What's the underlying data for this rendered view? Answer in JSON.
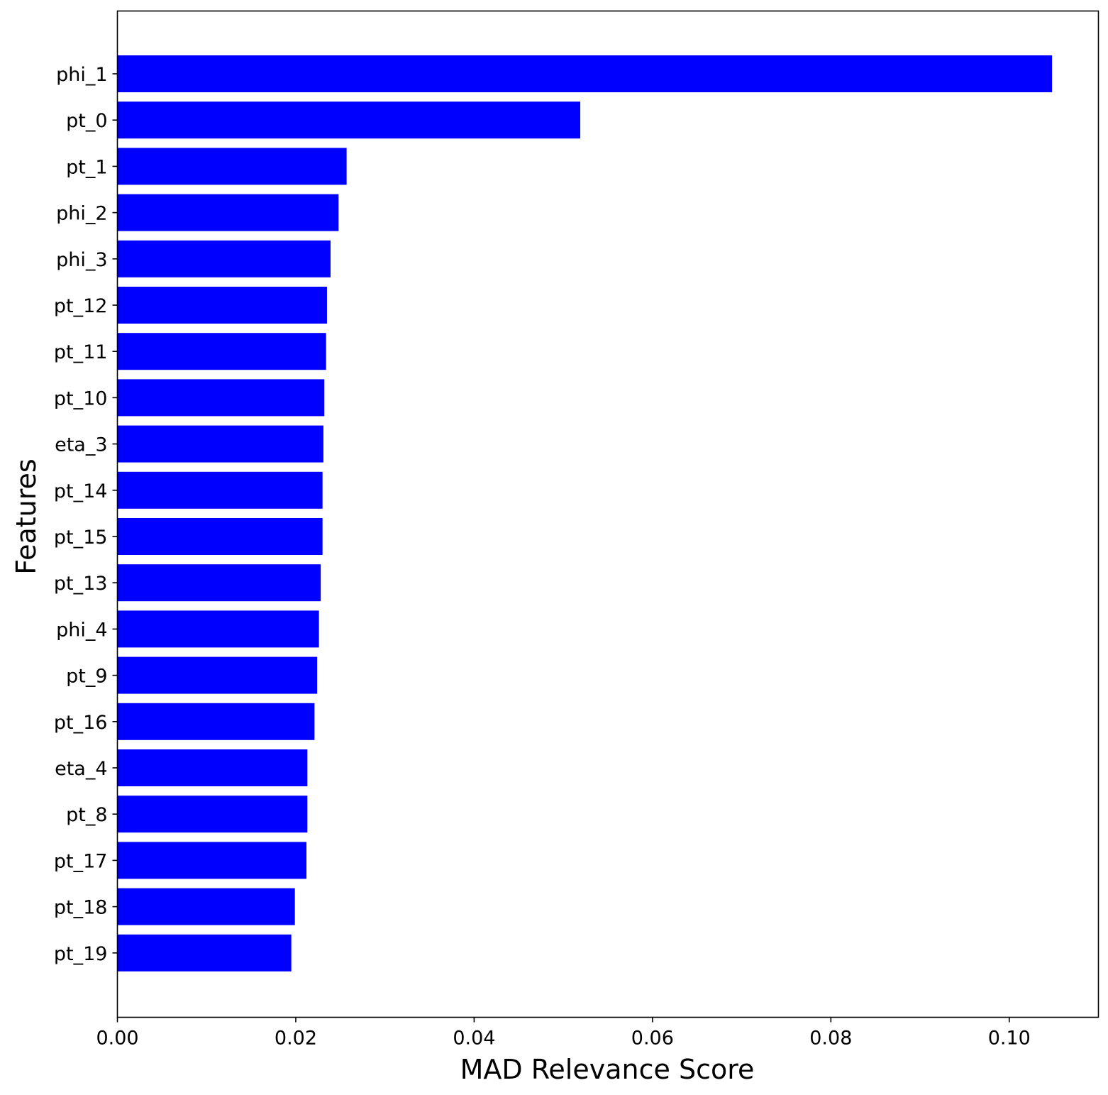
{
  "chart_data": {
    "type": "bar",
    "orientation": "horizontal",
    "title": "",
    "xlabel": "MAD Relevance Score",
    "ylabel": "Features",
    "xlim": [
      0,
      0.11
    ],
    "xticks": [
      "0.00",
      "0.02",
      "0.04",
      "0.06",
      "0.08",
      "0.10"
    ],
    "grid": false,
    "bar_color": "#0000ff",
    "categories": [
      "phi_1",
      "pt_0",
      "pt_1",
      "phi_2",
      "phi_3",
      "pt_12",
      "pt_11",
      "pt_10",
      "eta_3",
      "pt_14",
      "pt_15",
      "pt_13",
      "phi_4",
      "pt_9",
      "pt_16",
      "eta_4",
      "pt_8",
      "pt_17",
      "pt_18",
      "pt_19"
    ],
    "values": [
      0.1048,
      0.0519,
      0.0257,
      0.0248,
      0.0239,
      0.0235,
      0.0234,
      0.0232,
      0.0231,
      0.023,
      0.023,
      0.0228,
      0.0226,
      0.0224,
      0.0221,
      0.0213,
      0.0213,
      0.0212,
      0.0199,
      0.0195
    ]
  }
}
